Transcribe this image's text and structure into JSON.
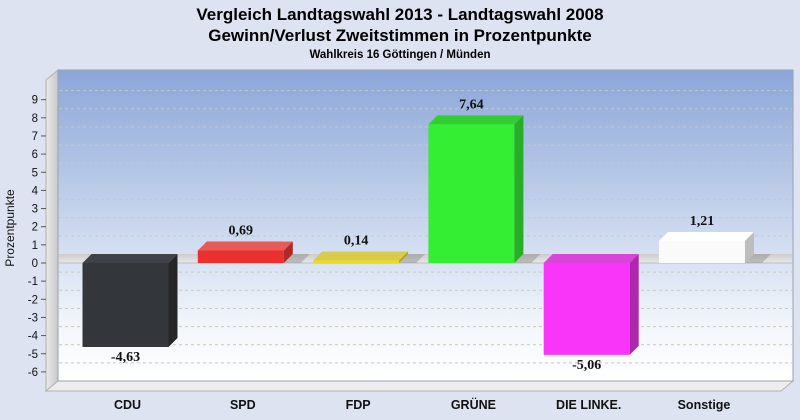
{
  "header": {
    "title_line1": "Vergleich Landtagswahl 2013 - Landtagswahl 2008",
    "title_line2": "Gewinn/Verlust Zweitstimmen in Prozentpunkte",
    "caption": "Wahlkreis 16 Göttingen / Münden"
  },
  "chart_data": {
    "type": "bar",
    "title": "Vergleich Landtagswahl 2013 - Landtagswahl 2008",
    "subtitle": "Gewinn/Verlust Zweitstimmen in Prozentpunkte",
    "caption": "Wahlkreis 16 Göttingen / Münden",
    "categories": [
      "CDU",
      "SPD",
      "FDP",
      "GRÜNE",
      "DIE LINKE.",
      "Sonstige"
    ],
    "values": [
      -4.63,
      0.69,
      0.14,
      7.64,
      -5.06,
      1.21
    ],
    "value_labels": [
      "-4,63",
      "0,69",
      "0,14",
      "7,64",
      "-5,06",
      "1,21"
    ],
    "xlabel": "",
    "ylabel": "Prozentpunkte",
    "ylim": [
      -6,
      9
    ],
    "ytick_step": 1,
    "grid": "dashed horizontal",
    "legend": "none",
    "style": "3d-columns",
    "bar_colors": [
      {
        "front": "#33363b",
        "top": "#3f4248",
        "side": "#24262a"
      },
      {
        "front": "#ec2f2f",
        "top": "#e85a55",
        "side": "#ad2a28"
      },
      {
        "front": "#eedd1e",
        "top": "#d9cc4a",
        "side": "#b3a313"
      },
      {
        "front": "#33ee33",
        "top": "#30cf30",
        "side": "#27ad27"
      },
      {
        "front": "#f935f9",
        "top": "#d944d9",
        "side": "#ad28ad"
      },
      {
        "front": "#fafafa",
        "top": "#ffffff",
        "side": "#bdbdbd"
      }
    ],
    "plot_colors": {
      "bg_top": "#8ba6d8",
      "bg_bottom": "#ffffff",
      "wall": "#e9e9e9",
      "wall_dark": "#c9c9c9",
      "zero_band_top": "#cccccc",
      "zero_band_bottom": "#e8e8e8",
      "gridline": "#c9c9b9",
      "border": "#9aa2b2",
      "page_bg": "#dee3f2",
      "text": "#111111",
      "shadow": "rgba(120,120,120,0.38)"
    }
  }
}
